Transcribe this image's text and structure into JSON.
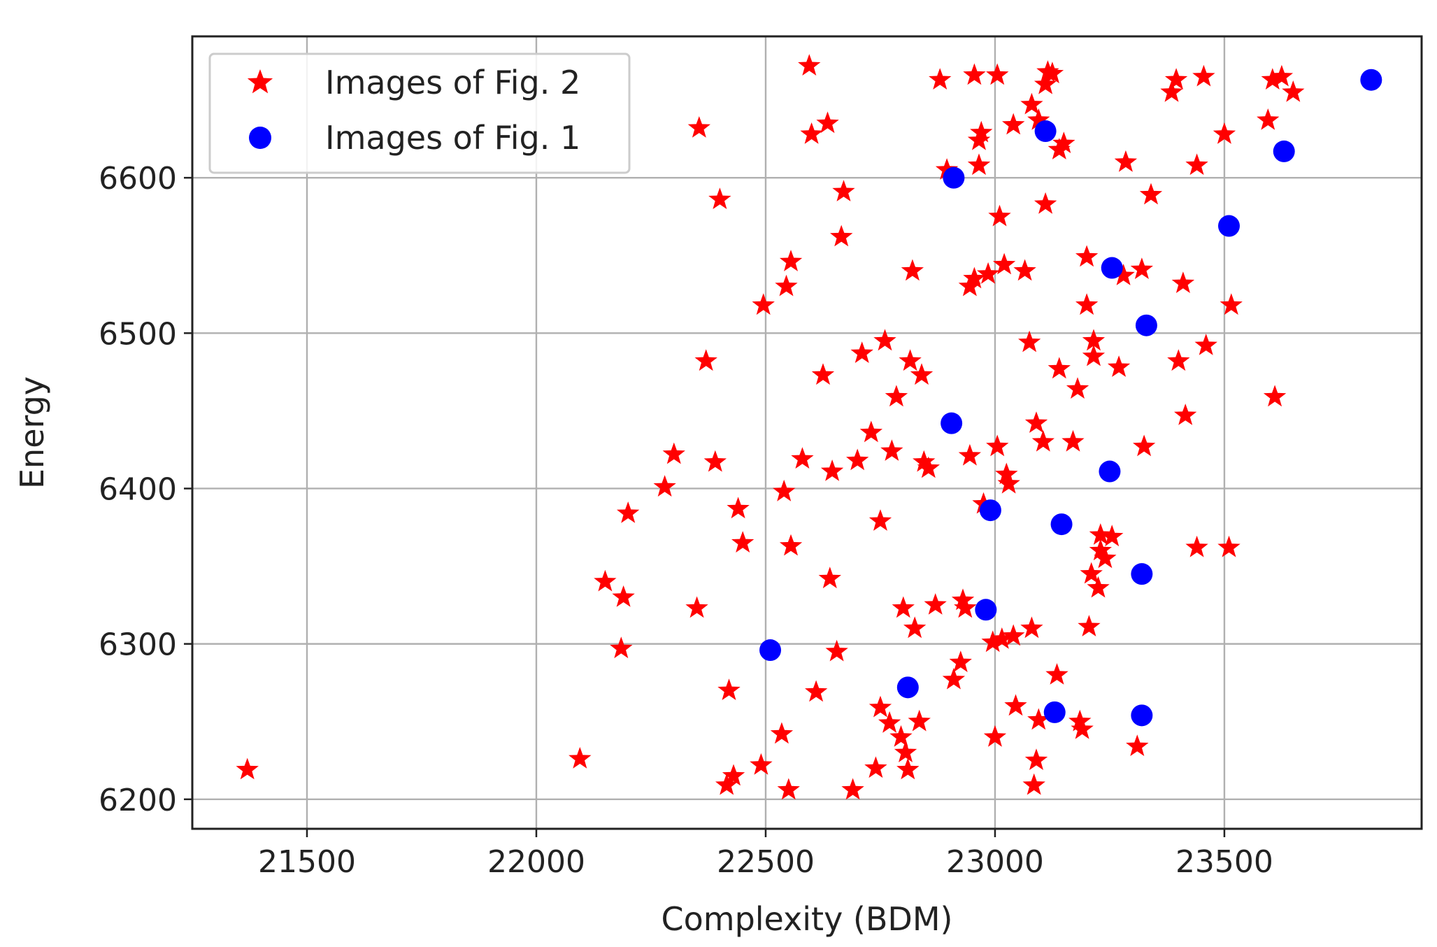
{
  "chart_data": {
    "type": "scatter",
    "xlabel": "Complexity (BDM)",
    "ylabel": "Energy",
    "xlim": [
      21250,
      23930
    ],
    "ylim": [
      6181,
      6691
    ],
    "xticks": [
      21500,
      22000,
      22500,
      23000,
      23500
    ],
    "yticks": [
      6200,
      6300,
      6400,
      6500,
      6600
    ],
    "grid": true,
    "legend_position": "top-left",
    "series": [
      {
        "name": "Images of Fig. 2",
        "marker": "star",
        "color": "#ff0000",
        "points": [
          [
            21370,
            6219
          ],
          [
            22095,
            6226
          ],
          [
            22150,
            6340
          ],
          [
            22190,
            6330
          ],
          [
            22185,
            6297
          ],
          [
            22200,
            6384
          ],
          [
            22280,
            6401
          ],
          [
            22300,
            6422
          ],
          [
            22350,
            6323
          ],
          [
            22355,
            6632
          ],
          [
            22370,
            6482
          ],
          [
            22390,
            6417
          ],
          [
            22400,
            6586
          ],
          [
            22415,
            6209
          ],
          [
            22420,
            6270
          ],
          [
            22430,
            6215
          ],
          [
            22440,
            6387
          ],
          [
            22450,
            6365
          ],
          [
            22490,
            6222
          ],
          [
            22495,
            6518
          ],
          [
            22535,
            6242
          ],
          [
            22540,
            6398
          ],
          [
            22545,
            6530
          ],
          [
            22555,
            6546
          ],
          [
            22550,
            6206
          ],
          [
            22555,
            6363
          ],
          [
            22580,
            6419
          ],
          [
            22595,
            6672
          ],
          [
            22600,
            6628
          ],
          [
            22610,
            6269
          ],
          [
            22625,
            6473
          ],
          [
            22635,
            6635
          ],
          [
            22640,
            6342
          ],
          [
            22645,
            6411
          ],
          [
            22655,
            6295
          ],
          [
            22665,
            6562
          ],
          [
            22670,
            6591
          ],
          [
            22690,
            6206
          ],
          [
            22700,
            6418
          ],
          [
            22710,
            6487
          ],
          [
            22730,
            6436
          ],
          [
            22740,
            6220
          ],
          [
            22750,
            6259
          ],
          [
            22760,
            6495
          ],
          [
            22750,
            6379
          ],
          [
            22770,
            6249
          ],
          [
            22775,
            6424
          ],
          [
            22785,
            6459
          ],
          [
            22795,
            6240
          ],
          [
            22800,
            6323
          ],
          [
            22805,
            6230
          ],
          [
            22810,
            6219
          ],
          [
            22815,
            6482
          ],
          [
            22820,
            6540
          ],
          [
            22825,
            6310
          ],
          [
            22835,
            6250
          ],
          [
            22840,
            6473
          ],
          [
            22845,
            6417
          ],
          [
            22855,
            6413
          ],
          [
            22870,
            6325
          ],
          [
            22880,
            6663
          ],
          [
            22895,
            6605
          ],
          [
            22910,
            6277
          ],
          [
            22925,
            6288
          ],
          [
            22930,
            6328
          ],
          [
            22935,
            6323
          ],
          [
            22945,
            6421
          ],
          [
            22945,
            6530
          ],
          [
            22955,
            6535
          ],
          [
            22955,
            6666
          ],
          [
            22965,
            6608
          ],
          [
            22965,
            6624
          ],
          [
            22970,
            6629
          ],
          [
            22975,
            6390
          ],
          [
            22985,
            6538
          ],
          [
            22995,
            6301
          ],
          [
            23000,
            6240
          ],
          [
            23005,
            6427
          ],
          [
            23005,
            6666
          ],
          [
            23010,
            6575
          ],
          [
            23015,
            6303
          ],
          [
            23020,
            6544
          ],
          [
            23025,
            6409
          ],
          [
            23030,
            6403
          ],
          [
            23040,
            6305
          ],
          [
            23040,
            6634
          ],
          [
            23045,
            6260
          ],
          [
            23065,
            6540
          ],
          [
            23075,
            6494
          ],
          [
            23080,
            6310
          ],
          [
            23080,
            6647
          ],
          [
            23085,
            6209
          ],
          [
            23090,
            6442
          ],
          [
            23090,
            6225
          ],
          [
            23095,
            6637
          ],
          [
            23095,
            6251
          ],
          [
            23105,
            6430
          ],
          [
            23110,
            6583
          ],
          [
            23110,
            6660
          ],
          [
            23115,
            6668
          ],
          [
            23125,
            6667
          ],
          [
            23135,
            6280
          ],
          [
            23140,
            6477
          ],
          [
            23140,
            6618
          ],
          [
            23150,
            6622
          ],
          [
            23170,
            6430
          ],
          [
            23180,
            6464
          ],
          [
            23185,
            6250
          ],
          [
            23190,
            6245
          ],
          [
            23200,
            6518
          ],
          [
            23200,
            6549
          ],
          [
            23205,
            6311
          ],
          [
            23210,
            6345
          ],
          [
            23215,
            6495
          ],
          [
            23215,
            6485
          ],
          [
            23225,
            6336
          ],
          [
            23230,
            6370
          ],
          [
            23230,
            6360
          ],
          [
            23240,
            6355
          ],
          [
            23255,
            6369
          ],
          [
            23270,
            6478
          ],
          [
            23280,
            6537
          ],
          [
            23285,
            6610
          ],
          [
            23310,
            6234
          ],
          [
            23320,
            6541
          ],
          [
            23325,
            6427
          ],
          [
            23340,
            6589
          ],
          [
            23400,
            6482
          ],
          [
            23410,
            6532
          ],
          [
            23415,
            6447
          ],
          [
            23385,
            6655
          ],
          [
            23395,
            6663
          ],
          [
            23440,
            6608
          ],
          [
            23455,
            6665
          ],
          [
            23460,
            6492
          ],
          [
            23440,
            6362
          ],
          [
            23500,
            6628
          ],
          [
            23510,
            6362
          ],
          [
            23515,
            6518
          ],
          [
            23595,
            6637
          ],
          [
            23605,
            6663
          ],
          [
            23610,
            6459
          ],
          [
            23625,
            6665
          ],
          [
            23650,
            6655
          ]
        ]
      },
      {
        "name": "Images of Fig. 1",
        "marker": "circle",
        "color": "#0000ff",
        "points": [
          [
            22510,
            6296
          ],
          [
            22810,
            6272
          ],
          [
            22905,
            6442
          ],
          [
            22910,
            6600
          ],
          [
            22980,
            6322
          ],
          [
            22990,
            6386
          ],
          [
            23110,
            6630
          ],
          [
            23130,
            6256
          ],
          [
            23145,
            6377
          ],
          [
            23250,
            6411
          ],
          [
            23255,
            6542
          ],
          [
            23320,
            6345
          ],
          [
            23320,
            6254
          ],
          [
            23330,
            6505
          ],
          [
            23510,
            6569
          ],
          [
            23630,
            6617
          ],
          [
            23820,
            6663
          ]
        ]
      }
    ]
  }
}
